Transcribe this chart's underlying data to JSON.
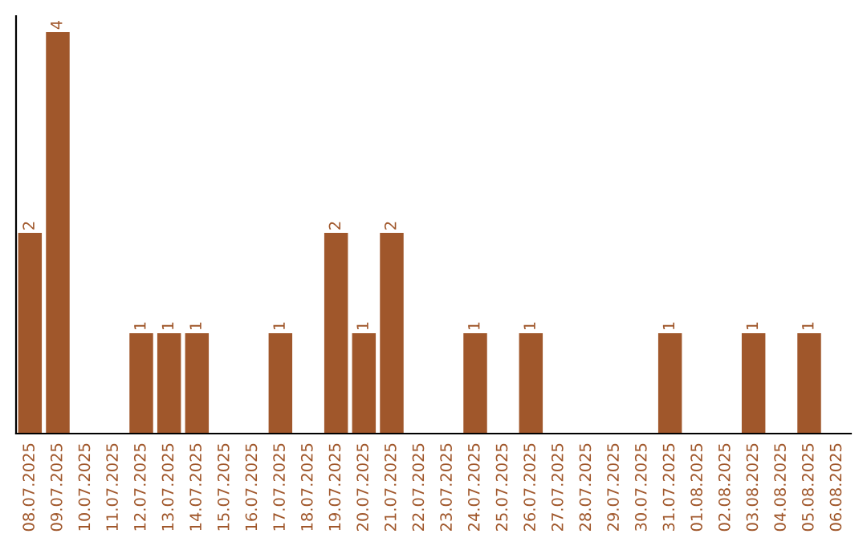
{
  "chart_data": {
    "type": "bar",
    "categories": [
      "08.07.2025",
      "09.07.2025",
      "10.07.2025",
      "11.07.2025",
      "12.07.2025",
      "13.07.2025",
      "14.07.2025",
      "15.07.2025",
      "16.07.2025",
      "17.07.2025",
      "18.07.2025",
      "19.07.2025",
      "20.07.2025",
      "21.07.2025",
      "22.07.2025",
      "23.07.2025",
      "24.07.2025",
      "25.07.2025",
      "26.07.2025",
      "27.07.2025",
      "28.07.2025",
      "29.07.2025",
      "30.07.2025",
      "31.07.2025",
      "01.08.2025",
      "02.08.2025",
      "03.08.2025",
      "04.08.2025",
      "05.08.2025",
      "06.08.2025"
    ],
    "values": [
      2,
      4,
      0,
      0,
      1,
      1,
      1,
      0,
      0,
      1,
      0,
      2,
      1,
      2,
      0,
      0,
      1,
      0,
      1,
      0,
      0,
      0,
      0,
      1,
      0,
      0,
      1,
      0,
      1,
      0
    ],
    "value_labels": [
      "2",
      "4",
      null,
      null,
      "1",
      "1",
      "1",
      null,
      null,
      "1",
      null,
      "2",
      "1",
      "2",
      null,
      null,
      "1",
      null,
      "1",
      null,
      null,
      null,
      null,
      "1",
      null,
      null,
      "1",
      null,
      "1",
      null
    ],
    "color": "#a0572b",
    "tick_labels": "x",
    "grid": false,
    "legend": false
  }
}
